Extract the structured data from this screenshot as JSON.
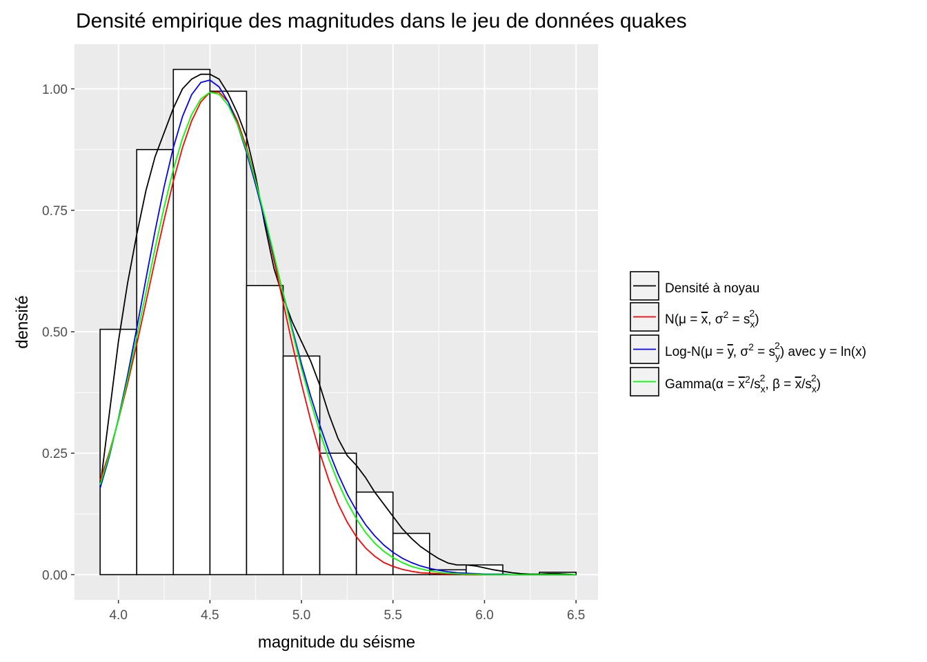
{
  "chart_data": {
    "type": "histogram",
    "title": "Densité empirique des magnitudes dans le jeu de données quakes",
    "xlabel": "magnitude du séisme",
    "ylabel": "densité",
    "xlim": [
      3.76,
      6.62
    ],
    "ylim": [
      -0.052,
      1.092
    ],
    "x_ticks": [
      {
        "value": 4.0,
        "label": "4.0"
      },
      {
        "value": 4.5,
        "label": "4.5"
      },
      {
        "value": 5.0,
        "label": "5.0"
      },
      {
        "value": 5.5,
        "label": "5.5"
      },
      {
        "value": 6.0,
        "label": "6.0"
      },
      {
        "value": 6.5,
        "label": "6.5"
      }
    ],
    "y_ticks": [
      {
        "value": 0.0,
        "label": "0.00"
      },
      {
        "value": 0.25,
        "label": "0.25"
      },
      {
        "value": 0.5,
        "label": "0.50"
      },
      {
        "value": 0.75,
        "label": "0.75"
      },
      {
        "value": 1.0,
        "label": "1.00"
      }
    ],
    "panel_background": "#ebebeb",
    "grid": true,
    "legend_position": "right",
    "histogram": {
      "bar_fill": "#ffffff",
      "bar_outline": "#000000",
      "bars": [
        {
          "x0": 3.9,
          "x1": 4.1,
          "y": 0.505
        },
        {
          "x0": 4.1,
          "x1": 4.3,
          "y": 0.875
        },
        {
          "x0": 4.3,
          "x1": 4.5,
          "y": 1.04
        },
        {
          "x0": 4.5,
          "x1": 4.7,
          "y": 0.995
        },
        {
          "x0": 4.7,
          "x1": 4.9,
          "y": 0.595
        },
        {
          "x0": 4.9,
          "x1": 5.1,
          "y": 0.45
        },
        {
          "x0": 5.1,
          "x1": 5.3,
          "y": 0.25
        },
        {
          "x0": 5.3,
          "x1": 5.5,
          "y": 0.17
        },
        {
          "x0": 5.5,
          "x1": 5.7,
          "y": 0.085
        },
        {
          "x0": 5.7,
          "x1": 5.9,
          "y": 0.01
        },
        {
          "x0": 5.9,
          "x1": 6.1,
          "y": 0.02
        },
        {
          "x0": 6.1,
          "x1": 6.3,
          "y": 0.0
        },
        {
          "x0": 6.3,
          "x1": 6.5,
          "y": 0.005
        }
      ]
    },
    "series": [
      {
        "key": "kde",
        "color": "#000000",
        "x": [
          3.9,
          3.95,
          4.0,
          4.05,
          4.1,
          4.15,
          4.2,
          4.25,
          4.3,
          4.35,
          4.4,
          4.45,
          4.5,
          4.55,
          4.6,
          4.65,
          4.7,
          4.75,
          4.8,
          4.85,
          4.9,
          4.95,
          5.0,
          5.05,
          5.1,
          5.15,
          5.2,
          5.25,
          5.3,
          5.35,
          5.4,
          5.45,
          5.5,
          5.55,
          5.6,
          5.65,
          5.7,
          5.75,
          5.8,
          5.85,
          5.9,
          5.95,
          6.0,
          6.05,
          6.1,
          6.15,
          6.2,
          6.25,
          6.3,
          6.35,
          6.4,
          6.45,
          6.5
        ],
        "y": [
          0.18,
          0.33,
          0.48,
          0.6,
          0.7,
          0.79,
          0.86,
          0.91,
          0.96,
          1.0,
          1.02,
          1.03,
          1.03,
          1.02,
          0.99,
          0.95,
          0.9,
          0.82,
          0.72,
          0.63,
          0.57,
          0.52,
          0.48,
          0.44,
          0.39,
          0.33,
          0.28,
          0.245,
          0.225,
          0.2,
          0.17,
          0.145,
          0.12,
          0.095,
          0.075,
          0.058,
          0.045,
          0.033,
          0.024,
          0.02,
          0.02,
          0.018,
          0.014,
          0.01,
          0.007,
          0.004,
          0.002,
          0.001,
          0.001,
          0.002,
          0.002,
          0.001,
          0.0
        ]
      },
      {
        "key": "normal",
        "color": "#ff0000",
        "x": [
          3.9,
          3.95,
          4.0,
          4.05,
          4.1,
          4.15,
          4.2,
          4.25,
          4.3,
          4.35,
          4.4,
          4.45,
          4.5,
          4.55,
          4.6,
          4.65,
          4.7,
          4.75,
          4.8,
          4.85,
          4.9,
          4.95,
          5.0,
          5.05,
          5.1,
          5.15,
          5.2,
          5.25,
          5.3,
          5.35,
          5.4,
          5.45,
          5.5,
          5.55,
          5.6,
          5.65,
          5.7,
          5.75,
          5.8,
          5.85,
          5.9,
          5.95,
          6.0,
          6.05,
          6.1,
          6.15,
          6.2,
          6.25,
          6.3,
          6.35,
          6.4,
          6.45,
          6.5
        ],
        "y": [
          0.194,
          0.251,
          0.318,
          0.393,
          0.474,
          0.56,
          0.647,
          0.731,
          0.81,
          0.879,
          0.934,
          0.973,
          0.993,
          0.993,
          0.973,
          0.934,
          0.879,
          0.81,
          0.731,
          0.647,
          0.56,
          0.474,
          0.393,
          0.318,
          0.251,
          0.194,
          0.146,
          0.108,
          0.078,
          0.055,
          0.038,
          0.025,
          0.017,
          0.011,
          0.007,
          0.004,
          0.003,
          0.002,
          0.001,
          0.001,
          0.0,
          0.0,
          0.0,
          0.0,
          0.0,
          0.0,
          0.0,
          0.0,
          0.0,
          0.0,
          0.0,
          0.0,
          0.0
        ]
      },
      {
        "key": "lognormal",
        "color": "#0000ff",
        "x": [
          3.9,
          3.95,
          4.0,
          4.05,
          4.1,
          4.15,
          4.2,
          4.25,
          4.3,
          4.35,
          4.4,
          4.45,
          4.5,
          4.55,
          4.6,
          4.65,
          4.7,
          4.75,
          4.8,
          4.85,
          4.9,
          4.95,
          5.0,
          5.05,
          5.1,
          5.15,
          5.2,
          5.25,
          5.3,
          5.35,
          5.4,
          5.45,
          5.5,
          5.55,
          5.6,
          5.65,
          5.7,
          5.75,
          5.8,
          5.85,
          5.9,
          5.95,
          6.0,
          6.05,
          6.1,
          6.15,
          6.2,
          6.25,
          6.3,
          6.35,
          6.4,
          6.45,
          6.5
        ],
        "y": [
          0.178,
          0.243,
          0.321,
          0.41,
          0.507,
          0.608,
          0.707,
          0.799,
          0.879,
          0.943,
          0.988,
          1.013,
          1.018,
          1.004,
          0.973,
          0.927,
          0.869,
          0.802,
          0.73,
          0.655,
          0.579,
          0.505,
          0.434,
          0.368,
          0.308,
          0.254,
          0.207,
          0.166,
          0.132,
          0.103,
          0.08,
          0.061,
          0.046,
          0.034,
          0.025,
          0.018,
          0.013,
          0.009,
          0.006,
          0.004,
          0.003,
          0.002,
          0.001,
          0.001,
          0.001,
          0.0,
          0.0,
          0.0,
          0.0,
          0.0,
          0.0,
          0.0,
          0.0
        ]
      },
      {
        "key": "gamma",
        "color": "#00ff00",
        "x": [
          3.9,
          3.95,
          4.0,
          4.05,
          4.1,
          4.15,
          4.2,
          4.25,
          4.3,
          4.35,
          4.4,
          4.45,
          4.5,
          4.55,
          4.6,
          4.65,
          4.7,
          4.75,
          4.8,
          4.85,
          4.9,
          4.95,
          5.0,
          5.05,
          5.1,
          5.15,
          5.2,
          5.25,
          5.3,
          5.35,
          5.4,
          5.45,
          5.5,
          5.55,
          5.6,
          5.65,
          5.7,
          5.75,
          5.8,
          5.85,
          5.9,
          5.95,
          6.0,
          6.05,
          6.1,
          6.15,
          6.2,
          6.25,
          6.3,
          6.35,
          6.4,
          6.45,
          6.5
        ],
        "y": [
          0.185,
          0.247,
          0.319,
          0.401,
          0.489,
          0.58,
          0.671,
          0.757,
          0.834,
          0.898,
          0.947,
          0.979,
          0.993,
          0.989,
          0.966,
          0.927,
          0.874,
          0.809,
          0.736,
          0.658,
          0.578,
          0.5,
          0.425,
          0.356,
          0.294,
          0.238,
          0.19,
          0.149,
          0.115,
          0.087,
          0.065,
          0.048,
          0.035,
          0.025,
          0.017,
          0.012,
          0.008,
          0.005,
          0.003,
          0.002,
          0.001,
          0.001,
          0.0,
          0.0,
          0.0,
          0.0,
          0.0,
          0.0,
          0.0,
          0.0,
          0.0,
          0.0,
          0.0
        ]
      }
    ],
    "legend": {
      "kde": "Densité à noyau",
      "normal": {
        "a": "N(μ = ",
        "xbar": "x",
        "b": ", σ",
        "exp": "2",
        "c": " = s",
        "sub": "x",
        "exp2": "2",
        "d": ")"
      },
      "lognormal": {
        "a": "Log-N(μ = ",
        "ybar": "y",
        "b": ", σ",
        "exp": "2",
        "c": " = s",
        "sub": "y",
        "exp2": "2",
        "d": ") avec y = ln(x)"
      },
      "gamma": {
        "a": "Gamma(α = ",
        "xbar1": "x",
        "exp1": "2",
        "b": "/s",
        "sub1": "x",
        "exp2": "2",
        "c": ", β = ",
        "xbar2": "x",
        "d": "/s",
        "sub2": "x",
        "exp3": "2",
        "e": ")"
      }
    }
  }
}
